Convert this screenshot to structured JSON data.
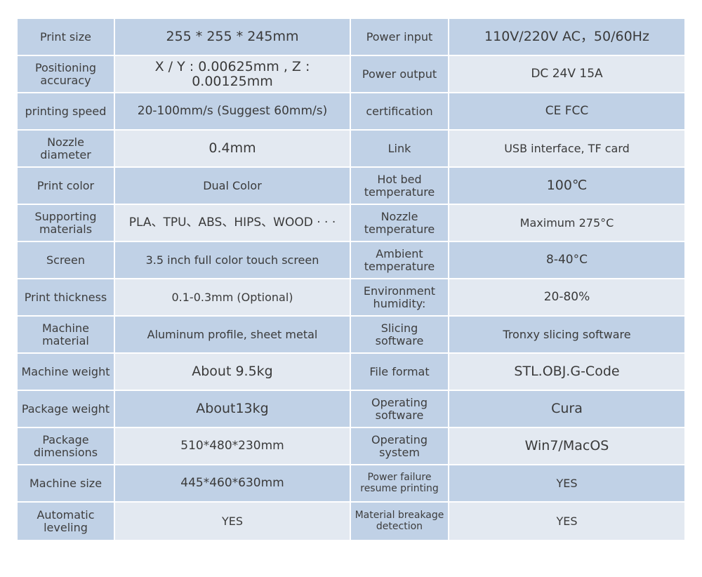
{
  "rows": [
    {
      "l1": "Print size",
      "v1": "255 * 255 * 245mm",
      "l2": "Power input",
      "v2": "110V/220V AC，50/60Hz"
    },
    {
      "l1": "Positioning\naccuracy",
      "v1": "X / Y : 0.00625mm , Z : 0.00125mm",
      "l2": "Power output",
      "v2": "DC 24V 15A"
    },
    {
      "l1": "printing speed",
      "v1": "20-100mm/s (Suggest 60mm/s)",
      "l2": "certification",
      "v2": "CE  FCC"
    },
    {
      "l1": "Nozzle diameter",
      "v1": "0.4mm",
      "l2": "Link",
      "v2": "USB interface, TF card"
    },
    {
      "l1": "Print color",
      "v1": "Dual Color",
      "l2": "Hot bed\ntemperature",
      "v2": "100℃"
    },
    {
      "l1": "Supporting\nmaterials",
      "v1": "PLA、TPU、ABS、HIPS、WOOD · · ·",
      "l2": "Nozzle\ntemperature",
      "v2": "Maximum 275°C"
    },
    {
      "l1": "Screen",
      "v1": "3.5 inch full color touch screen",
      "l2": "Ambient\ntemperature",
      "v2": "8-40°C"
    },
    {
      "l1": "Print thickness",
      "v1": "0.1-0.3mm (Optional)",
      "l2": "Environment\nhumidity:",
      "v2": "20-80%"
    },
    {
      "l1": "Machine\nmaterial",
      "v1": "Aluminum profile, sheet metal",
      "l2": "Slicing\nsoftware",
      "v2": "Tronxy slicing software"
    },
    {
      "l1": "Machine weight",
      "v1": "About 9.5kg",
      "l2": "File format",
      "v2": "STL.OBJ.G-Code"
    },
    {
      "l1": "Package weight",
      "v1": "About13kg",
      "l2": "Operating\nsoftware",
      "v2": "Cura"
    },
    {
      "l1": "Package\ndimensions",
      "v1": "510*480*230mm",
      "l2": "Operating\nsystem",
      "v2": "Win7/MacOS"
    },
    {
      "l1": "Machine size",
      "v1": "445*460*630mm",
      "l2": "Power failure\nresume printing",
      "v2": "YES"
    },
    {
      "l1": "Automatic\nleveling",
      "v1": "YES",
      "l2": "Material breakage\ndetection",
      "v2": "YES"
    }
  ],
  "colors": {
    "header_blue": "#c0d1e6",
    "row_light": "#e3e9f1",
    "text": "#3a3a3a"
  }
}
